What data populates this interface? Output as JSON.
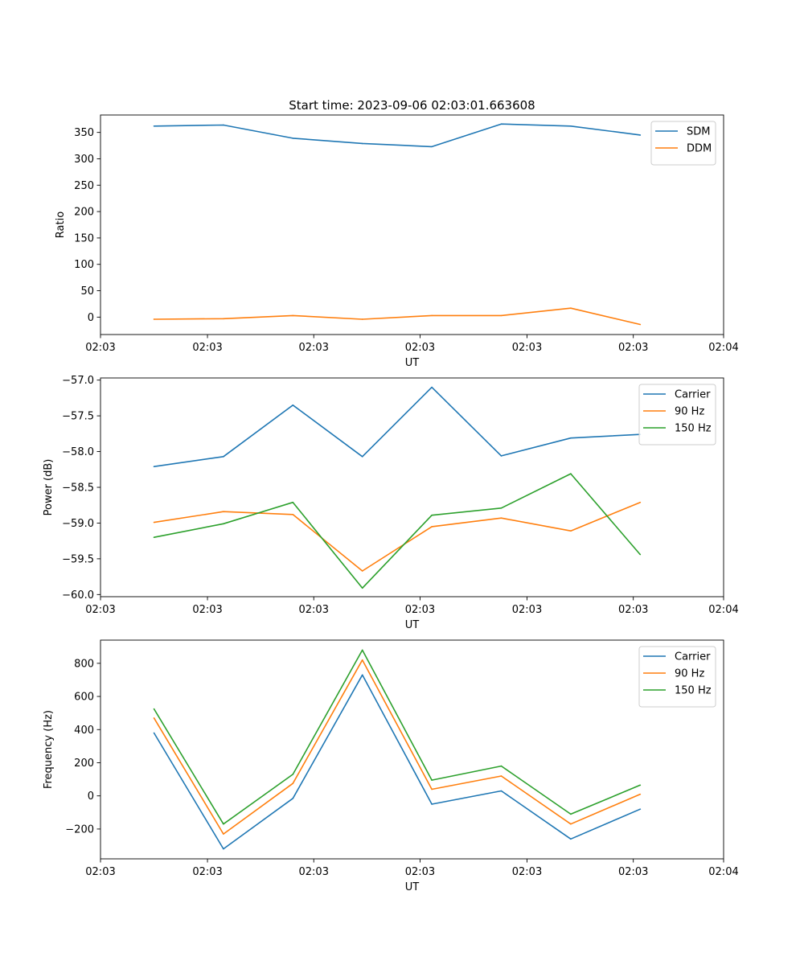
{
  "figure_title": "Start time: 2023-09-06 02:03:01.663608",
  "colors": {
    "blue": "#1f77b4",
    "orange": "#ff7f0e",
    "green": "#2ca02c"
  },
  "chart_data": [
    {
      "type": "line",
      "title": "Start time: 2023-09-06 02:03:01.663608",
      "xlabel": "UT",
      "ylabel": "Ratio",
      "x": [
        1,
        2,
        3,
        4,
        5,
        6,
        7,
        8
      ],
      "xlim": [
        0.23,
        9.2
      ],
      "x_ticks": [
        0.23,
        1.77,
        3.3,
        4.83,
        6.37,
        7.9,
        9.2
      ],
      "x_tick_labels": [
        "02:03",
        "02:03",
        "02:03",
        "02:03",
        "02:03",
        "02:03",
        "02:04"
      ],
      "ylim": [
        -33,
        383
      ],
      "y_ticks": [
        0,
        50,
        100,
        150,
        200,
        250,
        300,
        350
      ],
      "y_tick_labels": [
        "0",
        "50",
        "100",
        "150",
        "200",
        "250",
        "300",
        "350"
      ],
      "legend": "upper-right",
      "series": [
        {
          "name": "SDM",
          "color": "#1f77b4",
          "values": [
            362,
            364,
            339,
            329,
            323,
            366,
            362,
            345
          ]
        },
        {
          "name": "DDM",
          "color": "#ff7f0e",
          "values": [
            -4,
            -3,
            3,
            -4,
            3,
            3,
            17,
            -14
          ]
        }
      ]
    },
    {
      "type": "line",
      "xlabel": "UT",
      "ylabel": "Power (dB)",
      "x": [
        1,
        2,
        3,
        4,
        5,
        6,
        7,
        8
      ],
      "xlim": [
        0.23,
        9.2
      ],
      "x_ticks": [
        0.23,
        1.77,
        3.3,
        4.83,
        6.37,
        7.9,
        9.2
      ],
      "x_tick_labels": [
        "02:03",
        "02:03",
        "02:03",
        "02:03",
        "02:03",
        "02:03",
        "02:04"
      ],
      "ylim": [
        -60.03,
        -56.97
      ],
      "y_ticks": [
        -60.0,
        -59.5,
        -59.0,
        -58.5,
        -58.0,
        -57.5,
        -57.0
      ],
      "y_tick_labels": [
        "−60.0",
        "−59.5",
        "−59.0",
        "−58.5",
        "−58.0",
        "−57.5",
        "−57.0"
      ],
      "legend": "upper-right",
      "series": [
        {
          "name": "Carrier",
          "color": "#1f77b4",
          "values": [
            -58.21,
            -58.07,
            -57.35,
            -58.07,
            -57.1,
            -58.06,
            -57.81,
            -57.76
          ]
        },
        {
          "name": "90 Hz",
          "color": "#ff7f0e",
          "values": [
            -58.99,
            -58.84,
            -58.88,
            -59.67,
            -59.05,
            -58.93,
            -59.11,
            -58.71
          ]
        },
        {
          "name": "150 Hz",
          "color": "#2ca02c",
          "values": [
            -59.2,
            -59.01,
            -58.71,
            -59.91,
            -58.89,
            -58.79,
            -58.31,
            -59.44
          ]
        }
      ]
    },
    {
      "type": "line",
      "xlabel": "UT",
      "ylabel": "Frequency (Hz)",
      "x": [
        1,
        2,
        3,
        4,
        5,
        6,
        7,
        8
      ],
      "xlim": [
        0.23,
        9.2
      ],
      "x_ticks": [
        0.23,
        1.77,
        3.3,
        4.83,
        6.37,
        7.9,
        9.2
      ],
      "x_tick_labels": [
        "02:03",
        "02:03",
        "02:03",
        "02:03",
        "02:03",
        "02:03",
        "02:04"
      ],
      "ylim": [
        -380,
        940
      ],
      "y_ticks": [
        -200,
        0,
        200,
        400,
        600,
        800
      ],
      "y_tick_labels": [
        "−200",
        "0",
        "200",
        "400",
        "600",
        "800"
      ],
      "legend": "upper-right",
      "series": [
        {
          "name": "Carrier",
          "color": "#1f77b4",
          "values": [
            380,
            -320,
            -15,
            730,
            -50,
            30,
            -260,
            -80
          ]
        },
        {
          "name": "90 Hz",
          "color": "#ff7f0e",
          "values": [
            470,
            -230,
            75,
            820,
            40,
            120,
            -170,
            10
          ]
        },
        {
          "name": "150 Hz",
          "color": "#2ca02c",
          "values": [
            525,
            -170,
            130,
            880,
            95,
            180,
            -110,
            65
          ]
        }
      ]
    }
  ]
}
